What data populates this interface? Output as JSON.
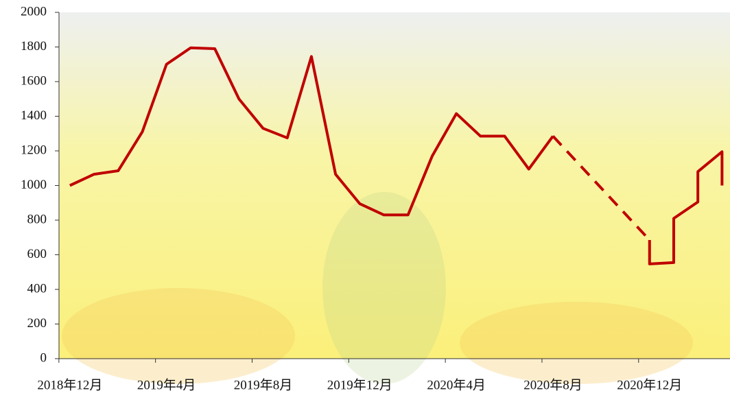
{
  "chart_data": {
    "type": "line",
    "color": "#c00000",
    "x_kind": "month_index",
    "xlim": [
      -0.45,
      27.33
    ],
    "xticks": [
      {
        "value": 0,
        "label": "2018年12月"
      },
      {
        "value": 4,
        "label": "2019年4月"
      },
      {
        "value": 8,
        "label": "2019年8月"
      },
      {
        "value": 12,
        "label": "2019年12月"
      },
      {
        "value": 16,
        "label": "2020年4月"
      },
      {
        "value": 20,
        "label": "2020年8月"
      },
      {
        "value": 24,
        "label": "2020年12月"
      }
    ],
    "ylim": [
      0,
      2000
    ],
    "yticks": [
      0,
      200,
      400,
      600,
      800,
      1000,
      1200,
      1400,
      1600,
      1800,
      2000
    ],
    "series": [
      {
        "style": "solid",
        "x": [
          0,
          1,
          2,
          3,
          4,
          5,
          6,
          7,
          8,
          9,
          10,
          11,
          12,
          13,
          14,
          15,
          16,
          17,
          18,
          19,
          20
        ],
        "values": [
          1000,
          1065,
          1085,
          1310,
          1700,
          1795,
          1790,
          1500,
          1330,
          1275,
          1745,
          1065,
          895,
          830,
          830,
          1170,
          1415,
          1285,
          1285,
          1095,
          1285
        ]
      },
      {
        "style": "dashed",
        "x": [
          20,
          24
        ],
        "values": [
          1285,
          685
        ]
      },
      {
        "style": "solid",
        "x": [
          24,
          24,
          25,
          25,
          26,
          26,
          27,
          27
        ],
        "values": [
          685,
          547,
          555,
          810,
          905,
          1080,
          1195,
          1000
        ]
      }
    ]
  }
}
